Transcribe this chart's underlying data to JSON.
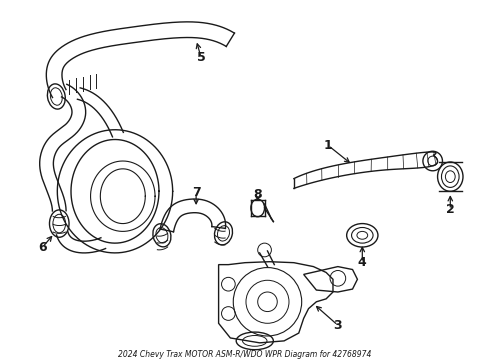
{
  "title": "2024 Chevy Trax MOTOR ASM-R/WDO WPR Diagram for 42768974",
  "bg_color": "#ffffff",
  "line_color": "#1a1a1a",
  "fig_width": 4.9,
  "fig_height": 3.6,
  "dpi": 100
}
